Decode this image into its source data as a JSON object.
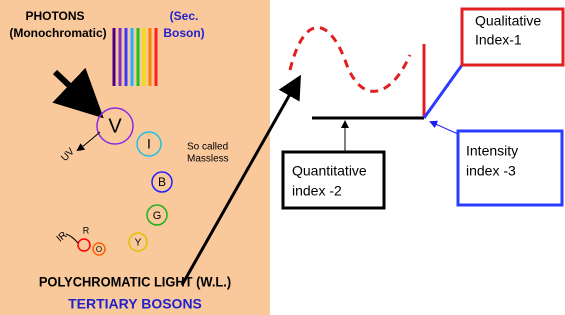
{
  "left_panel": {
    "photons": "PHOTONS",
    "monochromatic": "(Monochromatic)",
    "sec": "(Sec.",
    "boson": "Boson)",
    "circles": [
      {
        "label": "V"
      },
      {
        "label": "I"
      },
      {
        "label": "B"
      },
      {
        "label": "G"
      },
      {
        "label": "Y"
      },
      {
        "label": "O"
      },
      {
        "label": "R"
      }
    ],
    "uv": "UV",
    "ir": "IR",
    "so_called": "So called",
    "massless": "Massless",
    "polychromatic": "POLYCHROMATIC LIGHT (W.L.)",
    "tertiary": "TERTIARY BOSONS"
  },
  "boxes": {
    "qualitative": [
      "Qualitative",
      "Index-1"
    ],
    "quantitative": [
      "Quantitative",
      "index -2"
    ],
    "intensity": [
      "Intensity",
      "index -3"
    ]
  }
}
